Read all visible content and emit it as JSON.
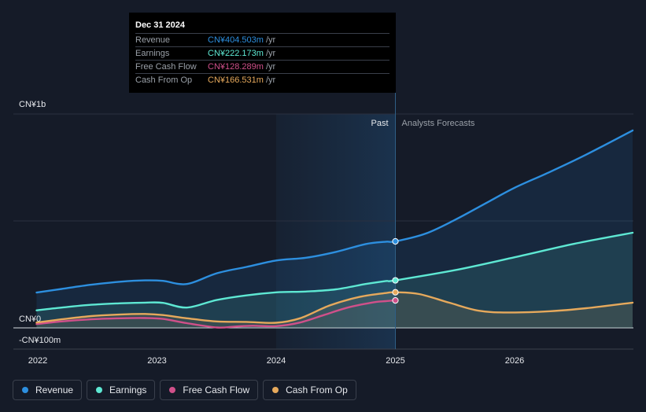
{
  "chart_data": {
    "type": "line",
    "y_label_top": "CN¥1b",
    "y_label_zero": "CN¥0",
    "y_label_bottom": "-CN¥100m",
    "ylim": [
      -100,
      1000
    ],
    "x_ticks": [
      "2022",
      "2023",
      "2024",
      "2025",
      "2026"
    ],
    "x_tick_values": [
      2022,
      2023,
      2024,
      2025,
      2026
    ],
    "past_label": "Past",
    "forecast_label": "Analysts Forecasts",
    "divider_x": 2025.0,
    "past_shade_start": 2024.0,
    "series": [
      {
        "name": "Revenue",
        "color": "#2d8fdf",
        "fill": true,
        "x": [
          2021.99,
          2022.2,
          2022.45,
          2022.7,
          2022.9,
          2023.05,
          2023.25,
          2023.5,
          2023.75,
          2024.0,
          2024.25,
          2024.5,
          2024.75,
          2024.92,
          2025.0,
          2025.25,
          2025.5,
          2025.75,
          2026.0,
          2026.3,
          2026.6,
          2026.99
        ],
        "y": [
          165,
          182,
          202,
          216,
          222,
          220,
          205,
          255,
          285,
          315,
          328,
          355,
          392,
          403,
          404.5,
          440,
          505,
          580,
          655,
          730,
          810,
          923
        ]
      },
      {
        "name": "Earnings",
        "color": "#5ee8d3",
        "fill": true,
        "x": [
          2021.99,
          2022.2,
          2022.45,
          2022.7,
          2022.9,
          2023.05,
          2023.25,
          2023.5,
          2023.75,
          2024.0,
          2024.25,
          2024.5,
          2024.75,
          2024.92,
          2025.0,
          2025.5,
          2026.0,
          2026.5,
          2026.99
        ],
        "y": [
          82,
          95,
          108,
          115,
          118,
          117,
          95,
          130,
          152,
          166,
          170,
          180,
          205,
          219,
          222.2,
          270,
          330,
          393,
          445
        ]
      },
      {
        "name": "Free Cash Flow",
        "color": "#d0508a",
        "fill": false,
        "x": [
          2021.99,
          2022.2,
          2022.45,
          2022.7,
          2022.9,
          2023.05,
          2023.25,
          2023.5,
          2023.65,
          2023.8,
          2024.0,
          2024.2,
          2024.4,
          2024.6,
          2024.8,
          2024.92,
          2025.0
        ],
        "y": [
          18,
          30,
          40,
          45,
          46,
          42,
          22,
          2,
          6,
          10,
          8,
          25,
          60,
          95,
          118,
          125,
          128.3
        ]
      },
      {
        "name": "Cash From Op",
        "color": "#e6a95c",
        "fill": true,
        "x": [
          2021.99,
          2022.2,
          2022.45,
          2022.7,
          2022.9,
          2023.05,
          2023.25,
          2023.5,
          2023.75,
          2024.0,
          2024.2,
          2024.45,
          2024.7,
          2024.92,
          2025.0,
          2025.2,
          2025.45,
          2025.7,
          2025.95,
          2026.3,
          2026.6,
          2026.99
        ],
        "y": [
          25,
          40,
          55,
          63,
          65,
          60,
          45,
          30,
          28,
          24,
          45,
          105,
          145,
          163,
          166.5,
          158,
          118,
          80,
          72,
          78,
          92,
          118
        ]
      }
    ],
    "tooltip": {
      "date": "Dec 31 2024",
      "rows": [
        {
          "name": "Revenue",
          "value": "CN¥404.503m",
          "unit": "/yr",
          "color": "#2d8fdf"
        },
        {
          "name": "Earnings",
          "value": "CN¥222.173m",
          "unit": "/yr",
          "color": "#5ee8d3"
        },
        {
          "name": "Free Cash Flow",
          "value": "CN¥128.289m",
          "unit": "/yr",
          "color": "#d0508a"
        },
        {
          "name": "Cash From Op",
          "value": "CN¥166.531m",
          "unit": "/yr",
          "color": "#e6a95c"
        }
      ]
    },
    "legend": [
      {
        "label": "Revenue",
        "color": "#2d8fdf"
      },
      {
        "label": "Earnings",
        "color": "#5ee8d3"
      },
      {
        "label": "Free Cash Flow",
        "color": "#d0508a"
      },
      {
        "label": "Cash From Op",
        "color": "#e6a95c"
      }
    ]
  }
}
